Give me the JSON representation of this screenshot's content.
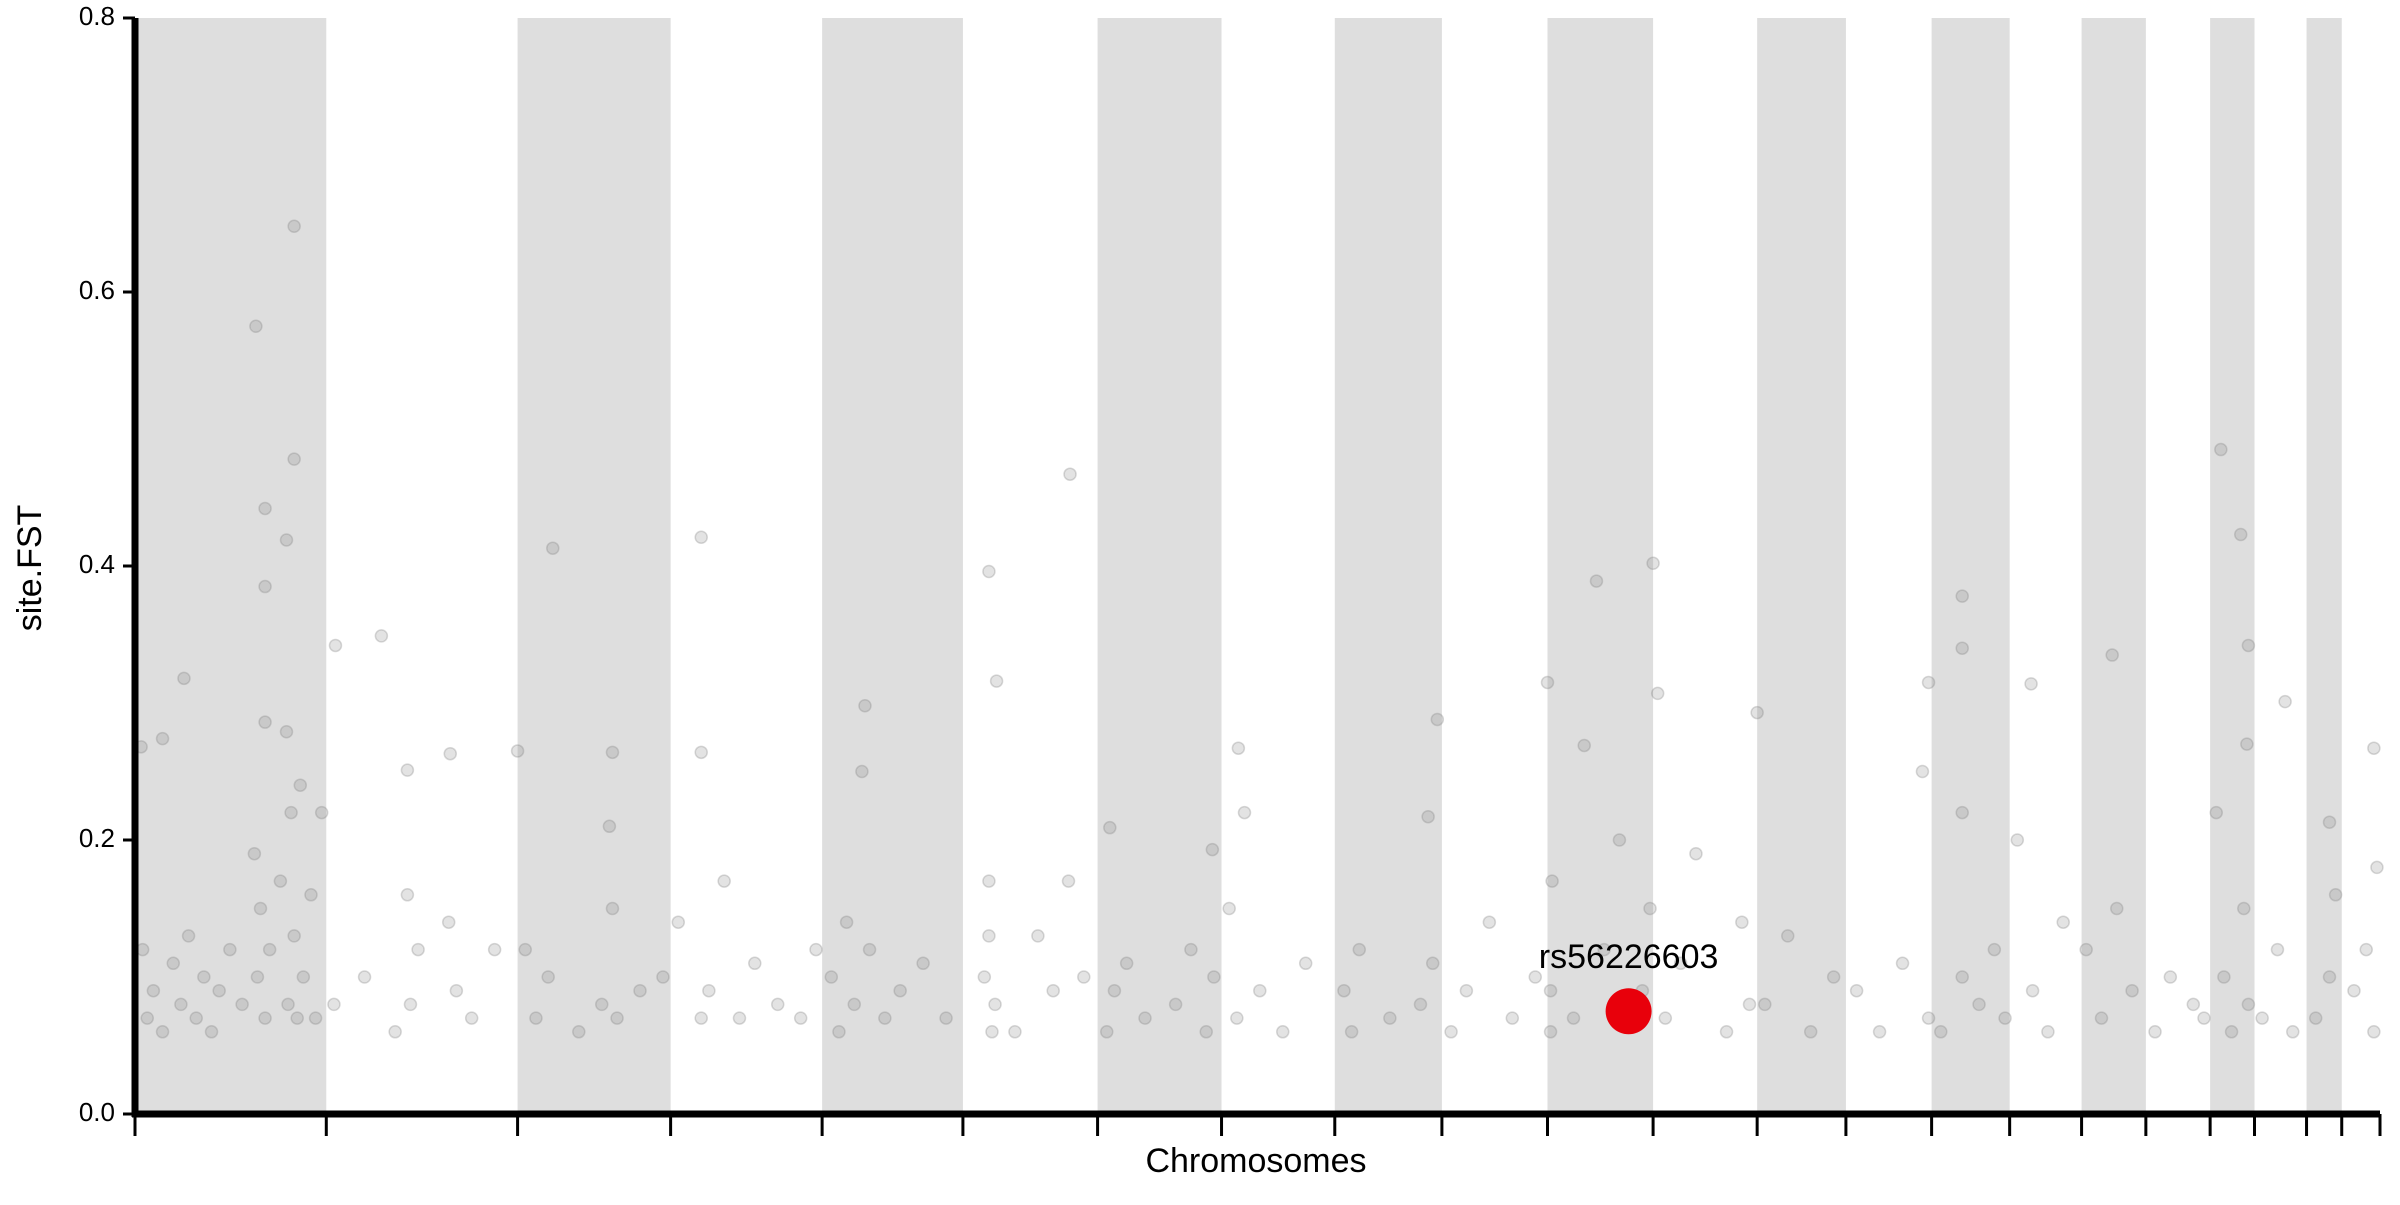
{
  "chart_data": {
    "type": "scatter",
    "xlabel": "Chromosomes",
    "ylabel": "site.FST",
    "xlim": [
      0,
      1467
    ],
    "xticks": [
      0,
      125,
      250,
      350,
      449,
      541,
      629,
      710,
      784,
      854,
      923,
      992,
      1060,
      1118,
      1174,
      1225,
      1272,
      1314,
      1356,
      1385,
      1419,
      1442,
      1467
    ],
    "ylim": [
      0,
      0.8
    ],
    "yticks": [
      {
        "value": 0,
        "label": "0.0"
      },
      0.2,
      0.4,
      0.6,
      0.8
    ],
    "band_color": "#dedede",
    "point_color": "#808080",
    "x": [
      79,
      104,
      104,
      85,
      99,
      85,
      85,
      99,
      32,
      18,
      4,
      131,
      161,
      178,
      206,
      273,
      250,
      312,
      370,
      370,
      477,
      558,
      563,
      611,
      637,
      721,
      704,
      851,
      845,
      955,
      992,
      923,
      947,
      995,
      1060,
      1194,
      1194,
      1172,
      1239,
      1292,
      1363,
      1376,
      1381,
      1405,
      1463,
      1434,
      5,
      8,
      12,
      18,
      25,
      30,
      35,
      40,
      45,
      50,
      55,
      62,
      70,
      78,
      80,
      82,
      85,
      88,
      95,
      100,
      102,
      104,
      106,
      108,
      110,
      115,
      118,
      122,
      130,
      150,
      170,
      178,
      180,
      185,
      205,
      210,
      220,
      235,
      255,
      262,
      270,
      290,
      305,
      310,
      312,
      315,
      330,
      345,
      355,
      370,
      375,
      385,
      395,
      405,
      420,
      435,
      445,
      455,
      460,
      465,
      470,
      475,
      480,
      490,
      500,
      515,
      530,
      555,
      558,
      560,
      558,
      562,
      575,
      590,
      600,
      610,
      620,
      635,
      640,
      648,
      660,
      680,
      690,
      700,
      705,
      715,
      720,
      725,
      735,
      750,
      765,
      790,
      795,
      800,
      820,
      840,
      848,
      860,
      870,
      885,
      900,
      915,
      925,
      925,
      926,
      940,
      960,
      970,
      985,
      990,
      1000,
      1010,
      1020,
      1040,
      1050,
      1055,
      1065,
      1080,
      1095,
      1110,
      1125,
      1140,
      1155,
      1168,
      1172,
      1180,
      1194,
      1194,
      1205,
      1215,
      1222,
      1230,
      1240,
      1250,
      1260,
      1275,
      1285,
      1295,
      1305,
      1320,
      1330,
      1345,
      1352,
      1360,
      1365,
      1370,
      1378,
      1380,
      1381,
      1390,
      1400,
      1410,
      1425,
      1434,
      1438,
      1450,
      1458,
      1463,
      1465
    ],
    "values": [
      0.575,
      0.648,
      0.478,
      0.442,
      0.419,
      0.385,
      0.286,
      0.279,
      0.318,
      0.274,
      0.268,
      0.342,
      0.349,
      0.251,
      0.263,
      0.413,
      0.265,
      0.264,
      0.421,
      0.264,
      0.298,
      0.396,
      0.316,
      0.467,
      0.209,
      0.267,
      0.193,
      0.288,
      0.217,
      0.389,
      0.402,
      0.315,
      0.269,
      0.307,
      0.293,
      0.378,
      0.34,
      0.315,
      0.314,
      0.335,
      0.485,
      0.423,
      0.342,
      0.301,
      0.267,
      0.213,
      0.12,
      0.07,
      0.09,
      0.06,
      0.11,
      0.08,
      0.13,
      0.07,
      0.1,
      0.06,
      0.09,
      0.12,
      0.08,
      0.19,
      0.1,
      0.15,
      0.07,
      0.12,
      0.17,
      0.08,
      0.22,
      0.13,
      0.07,
      0.24,
      0.1,
      0.16,
      0.07,
      0.22,
      0.08,
      0.1,
      0.06,
      0.16,
      0.08,
      0.12,
      0.14,
      0.09,
      0.07,
      0.12,
      0.12,
      0.07,
      0.1,
      0.06,
      0.08,
      0.21,
      0.15,
      0.07,
      0.09,
      0.1,
      0.14,
      0.07,
      0.09,
      0.17,
      0.07,
      0.11,
      0.08,
      0.07,
      0.12,
      0.1,
      0.06,
      0.14,
      0.08,
      0.25,
      0.12,
      0.07,
      0.09,
      0.11,
      0.07,
      0.1,
      0.17,
      0.06,
      0.13,
      0.08,
      0.06,
      0.13,
      0.09,
      0.17,
      0.1,
      0.06,
      0.09,
      0.11,
      0.07,
      0.08,
      0.12,
      0.06,
      0.1,
      0.15,
      0.07,
      0.22,
      0.09,
      0.06,
      0.11,
      0.09,
      0.06,
      0.12,
      0.07,
      0.08,
      0.11,
      0.06,
      0.09,
      0.14,
      0.07,
      0.1,
      0.06,
      0.09,
      0.17,
      0.07,
      0.12,
      0.2,
      0.09,
      0.15,
      0.07,
      0.11,
      0.19,
      0.06,
      0.14,
      0.08,
      0.08,
      0.13,
      0.06,
      0.1,
      0.09,
      0.06,
      0.11,
      0.25,
      0.07,
      0.06,
      0.1,
      0.22,
      0.08,
      0.12,
      0.07,
      0.2,
      0.09,
      0.06,
      0.14,
      0.12,
      0.07,
      0.15,
      0.09,
      0.06,
      0.1,
      0.08,
      0.07,
      0.22,
      0.1,
      0.06,
      0.15,
      0.27,
      0.08,
      0.07,
      0.12,
      0.06,
      0.07,
      0.1,
      0.16,
      0.09,
      0.12,
      0.06,
      0.18
    ],
    "highlight": {
      "label": "rs56226603",
      "x": 976,
      "value": 0.075,
      "color": "#e8000b"
    }
  }
}
